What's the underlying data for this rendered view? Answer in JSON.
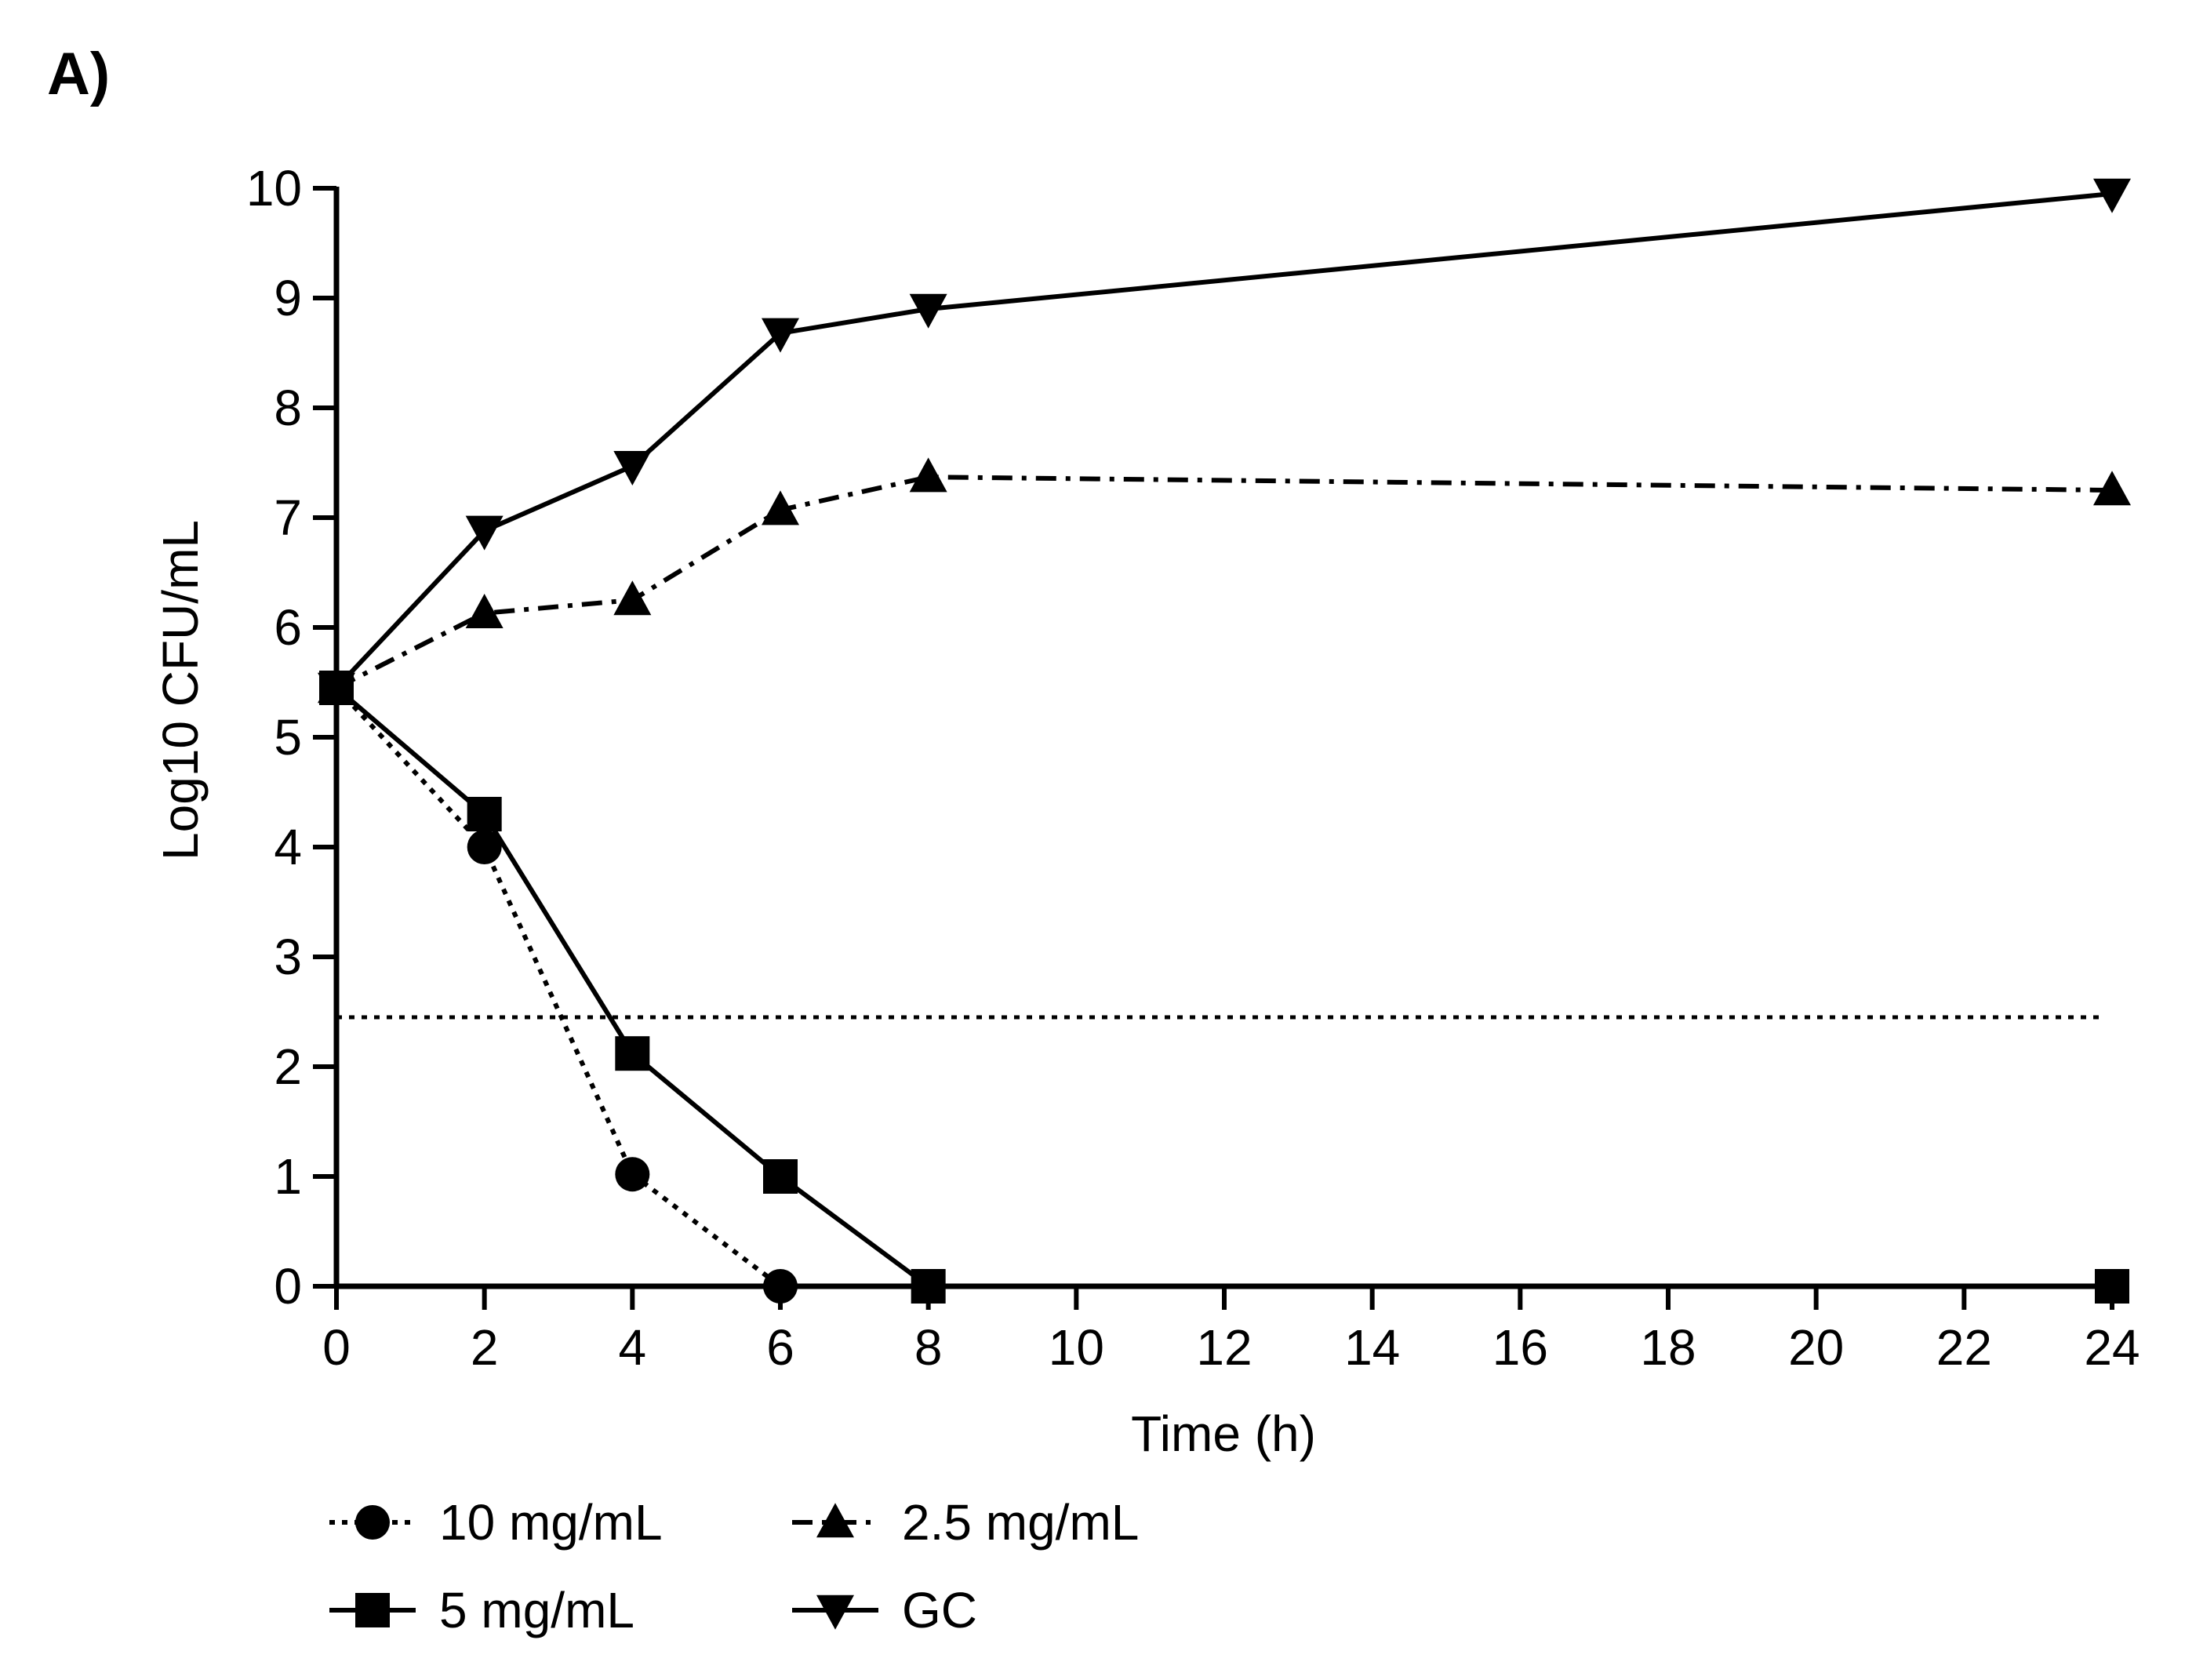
{
  "panel_label": "A)",
  "chart_data": {
    "type": "line",
    "title": "",
    "xlabel": "Time (h)",
    "ylabel": "Log10 CFU/mL",
    "xlim": [
      0,
      24
    ],
    "ylim": [
      0,
      10
    ],
    "x_ticks": [
      0,
      2,
      4,
      6,
      8,
      10,
      12,
      14,
      16,
      18,
      20,
      22,
      24
    ],
    "y_ticks": [
      0,
      1,
      2,
      3,
      4,
      5,
      6,
      7,
      8,
      9,
      10
    ],
    "grid": false,
    "legend_position": "bottom",
    "series": [
      {
        "name": "10 mg/mL",
        "marker": "circle",
        "line_style": "dotted",
        "x": [
          0,
          2,
          4,
          6
        ],
        "y": [
          5.45,
          4.0,
          1.02,
          0.0
        ]
      },
      {
        "name": "5 mg/mL",
        "marker": "square",
        "line_style": "solid",
        "x": [
          0,
          2,
          4,
          6,
          8,
          24
        ],
        "y": [
          5.45,
          4.3,
          2.12,
          1.0,
          0.0,
          0.0
        ]
      },
      {
        "name": "2.5 mg/mL",
        "marker": "triangle-up",
        "line_style": "dashdot",
        "x": [
          0,
          2,
          4,
          6,
          8,
          24
        ],
        "y": [
          5.45,
          6.13,
          6.25,
          7.07,
          7.37,
          7.25
        ]
      },
      {
        "name": "GC",
        "marker": "triangle-down",
        "line_style": "solid",
        "x": [
          0,
          2,
          4,
          6,
          8,
          24
        ],
        "y": [
          5.45,
          6.88,
          7.47,
          8.68,
          8.9,
          9.95
        ]
      }
    ],
    "reference_lines": [
      {
        "orientation": "horizontal",
        "y": 2.45,
        "x_range": [
          0,
          24
        ],
        "line_style": "dotted"
      }
    ]
  },
  "colors": {
    "ink": "#000000",
    "background": "#ffffff"
  }
}
